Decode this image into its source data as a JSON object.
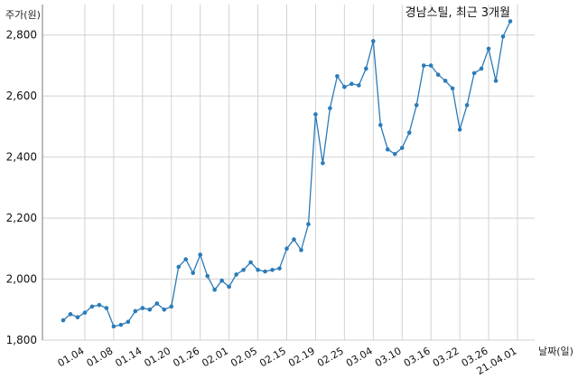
{
  "chart_data": {
    "type": "line",
    "title": "경남스틸, 최근 3개월",
    "ylabel": "주가(원)",
    "xlabel": "날짜(일)",
    "ylim": [
      1800,
      2900
    ],
    "y_ticks": [
      1800,
      2000,
      2200,
      2400,
      2600,
      2800
    ],
    "y_tick_labels": [
      "1,800",
      "2,000",
      "2,200",
      "2,400",
      "2,600",
      "2,800"
    ],
    "x_tick_labels": [
      "01.04",
      "01.08",
      "01.14",
      "01.20",
      "01.26",
      "02.01",
      "02.05",
      "02.15",
      "02.19",
      "02.25",
      "03.04",
      "03.10",
      "03.16",
      "03.22",
      "03.26",
      "21.04.01"
    ],
    "x_tick_index": [
      3,
      7,
      11,
      15,
      19,
      23,
      27,
      31,
      35,
      39,
      43,
      47,
      51,
      55,
      59,
      63
    ],
    "grid": true,
    "series": [
      {
        "color": "#2b7bb9",
        "values": [
          1865,
          1885,
          1875,
          1890,
          1910,
          1915,
          1905,
          1845,
          1850,
          1860,
          1895,
          1905,
          1900,
          1920,
          1900,
          1910,
          2040,
          2065,
          2020,
          2080,
          2010,
          1965,
          1995,
          1975,
          2015,
          2030,
          2055,
          2030,
          2025,
          2030,
          2035,
          2100,
          2130,
          2095,
          2180,
          2540,
          2380,
          2560,
          2665,
          2630,
          2640,
          2635,
          2690,
          2780,
          2505,
          2425,
          2410,
          2430,
          2480,
          2570,
          2700,
          2700,
          2670,
          2650,
          2625,
          2490,
          2570,
          2675,
          2690,
          2755,
          2650,
          2795,
          2845
        ]
      }
    ]
  }
}
